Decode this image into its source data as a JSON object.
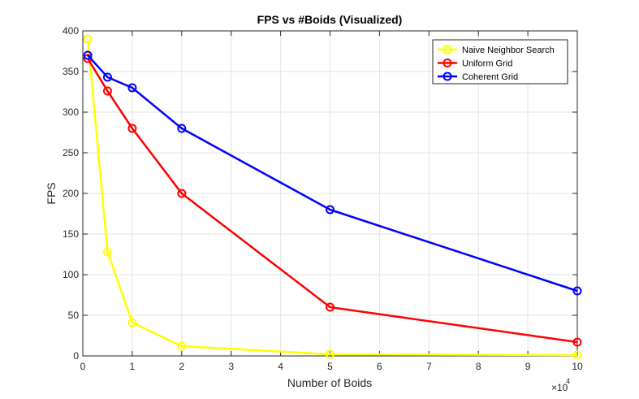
{
  "chart_data": {
    "type": "line",
    "title": "FPS vs #Boids (Visualized)",
    "xlabel": "Number of Boids",
    "ylabel": "FPS",
    "x_multiplier_label": "×10",
    "x_multiplier_exponent": "4",
    "xlim": [
      0,
      100000
    ],
    "ylim": [
      0,
      400
    ],
    "grid": true,
    "legend_position": "top-right",
    "x_ticks": [
      0,
      10000,
      20000,
      30000,
      40000,
      50000,
      60000,
      70000,
      80000,
      90000,
      100000
    ],
    "x_tick_labels": [
      "0",
      "1",
      "2",
      "3",
      "4",
      "5",
      "6",
      "7",
      "8",
      "9",
      "10"
    ],
    "y_ticks": [
      0,
      50,
      100,
      150,
      200,
      250,
      300,
      350,
      400
    ],
    "y_tick_labels": [
      "0",
      "50",
      "100",
      "150",
      "200",
      "250",
      "300",
      "350",
      "400"
    ],
    "x": [
      1000,
      5000,
      10000,
      20000,
      50000,
      100000
    ],
    "series": [
      {
        "name": "Naive Neighbor Search",
        "color": "#ffff00",
        "marker": "circle",
        "values": [
          390,
          128,
          41,
          12,
          2,
          1
        ]
      },
      {
        "name": "Uniform Grid",
        "color": "#ff0000",
        "marker": "circle",
        "values": [
          366,
          326,
          280,
          200,
          60,
          17
        ]
      },
      {
        "name": "Coherent Grid",
        "color": "#0000ff",
        "marker": "circle",
        "values": [
          370,
          343,
          330,
          280,
          180,
          80
        ]
      }
    ]
  }
}
